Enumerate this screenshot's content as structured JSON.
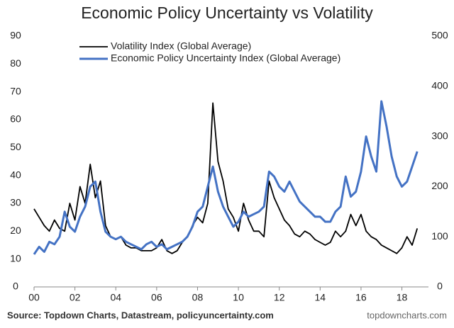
{
  "chart_data": {
    "type": "line",
    "title": "Economic Policy Uncertainty vs Volatility",
    "source": "Source: Topdown Charts, Datastream, policyuncertainty.com",
    "watermark": "topdowncharts.com",
    "x": [
      2000,
      2000.25,
      2000.5,
      2000.75,
      2001,
      2001.25,
      2001.5,
      2001.75,
      2002,
      2002.25,
      2002.5,
      2002.75,
      2003,
      2003.25,
      2003.5,
      2003.75,
      2004,
      2004.25,
      2004.5,
      2004.75,
      2005,
      2005.25,
      2005.5,
      2005.75,
      2006,
      2006.25,
      2006.5,
      2006.75,
      2007,
      2007.25,
      2007.5,
      2007.75,
      2008,
      2008.25,
      2008.5,
      2008.75,
      2009,
      2009.25,
      2009.5,
      2009.75,
      2010,
      2010.25,
      2010.5,
      2010.75,
      2011,
      2011.25,
      2011.5,
      2011.75,
      2012,
      2012.25,
      2012.5,
      2012.75,
      2013,
      2013.25,
      2013.5,
      2013.75,
      2014,
      2014.25,
      2014.5,
      2014.75,
      2015,
      2015.25,
      2015.5,
      2015.75,
      2016,
      2016.25,
      2016.5,
      2016.75,
      2017,
      2017.25,
      2017.5,
      2017.75,
      2018,
      2018.25,
      2018.5,
      2018.75
    ],
    "series": [
      {
        "name": "Volatility Index (Global Average)",
        "color": "#000000",
        "axis": "y",
        "values": [
          28,
          25,
          22,
          20,
          24,
          21,
          20,
          30,
          24,
          36,
          30,
          44,
          32,
          38,
          22,
          18,
          17,
          18,
          15,
          14,
          14,
          13,
          13,
          13,
          14,
          17,
          13,
          12,
          13,
          16,
          18,
          22,
          25,
          23,
          30,
          66,
          45,
          38,
          28,
          25,
          20,
          30,
          24,
          20,
          20,
          18,
          38,
          32,
          28,
          24,
          22,
          19,
          18,
          20,
          19,
          17,
          16,
          15,
          16,
          20,
          18,
          20,
          26,
          22,
          26,
          20,
          18,
          17,
          15,
          14,
          13,
          12,
          14,
          18,
          15,
          21
        ]
      },
      {
        "name": "Economic Policy Uncertainty Index (Global Average)",
        "color": "#4472c4",
        "axis": "y2",
        "values": [
          65,
          80,
          70,
          90,
          85,
          100,
          150,
          120,
          110,
          140,
          160,
          200,
          210,
          150,
          110,
          100,
          95,
          100,
          90,
          85,
          80,
          75,
          85,
          90,
          80,
          85,
          75,
          80,
          85,
          90,
          100,
          120,
          150,
          160,
          200,
          240,
          190,
          160,
          140,
          120,
          130,
          150,
          140,
          145,
          150,
          160,
          230,
          220,
          200,
          190,
          210,
          190,
          170,
          160,
          150,
          140,
          140,
          130,
          130,
          150,
          160,
          220,
          180,
          190,
          230,
          300,
          260,
          230,
          370,
          320,
          260,
          220,
          200,
          210,
          240,
          270
        ]
      }
    ],
    "xlim": [
      2000,
      2019.3
    ],
    "xticks": [
      {
        "value": 2000,
        "label": "00"
      },
      {
        "value": 2002,
        "label": "02"
      },
      {
        "value": 2004,
        "label": "04"
      },
      {
        "value": 2006,
        "label": "06"
      },
      {
        "value": 2008,
        "label": "08"
      },
      {
        "value": 2010,
        "label": "10"
      },
      {
        "value": 2012,
        "label": "12"
      },
      {
        "value": 2014,
        "label": "14"
      },
      {
        "value": 2016,
        "label": "16"
      },
      {
        "value": 2018,
        "label": "18"
      }
    ],
    "ylim": [
      0,
      90
    ],
    "yticks": [
      0,
      10,
      20,
      30,
      40,
      50,
      60,
      70,
      80,
      90
    ],
    "y2lim": [
      0,
      500
    ],
    "y2ticks": [
      0,
      100,
      200,
      300,
      400,
      500
    ],
    "legend": "upper-left"
  }
}
